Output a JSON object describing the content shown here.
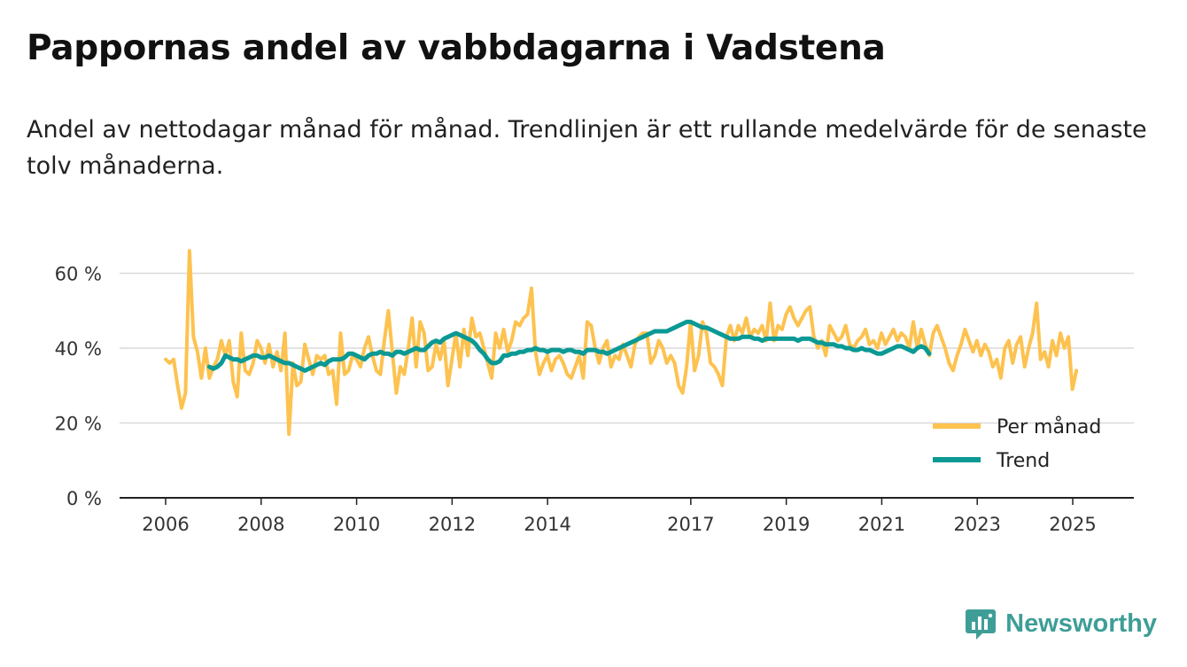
{
  "title": "Pappornas andel av vabbdagarna i Vadstena",
  "subtitle": "Andel av nettodagar månad för månad. Trendlinjen är ett rullande medelvärde för de senaste tolv månaderna.",
  "brand": {
    "name": "Newsworthy",
    "icon": "newsworthy-logo-icon",
    "color": "#3e9e97"
  },
  "colors": {
    "monthly": "#fdc24f",
    "trend": "#0b9994",
    "grid": "#d9d9d9",
    "axis": "#222222"
  },
  "chart_data": {
    "type": "line",
    "title": "Pappornas andel av vabbdagarna i Vadstena",
    "xlabel": "",
    "ylabel": "",
    "ylim": [
      0,
      65
    ],
    "y_ticks": [
      0,
      20,
      40,
      60
    ],
    "y_tick_labels": [
      "0 %",
      "20 %",
      "40 %",
      "60 %"
    ],
    "x_ticks": [
      2006,
      2008,
      2010,
      2012,
      2014,
      2017,
      2019,
      2021,
      2023,
      2025
    ],
    "x_tick_labels": [
      "2006",
      "2008",
      "2010",
      "2012",
      "2014",
      "2017",
      "2019",
      "2021",
      "2023",
      "2025"
    ],
    "grid": true,
    "legend": {
      "placement": "bottom-right",
      "entries": [
        "Per månad",
        "Trend"
      ]
    },
    "series": [
      {
        "name": "Per månad",
        "color": "#fdc24f",
        "x_start": 2006.0,
        "step": 0.0833,
        "values": [
          37,
          36,
          37,
          30,
          24,
          28,
          66,
          43,
          39,
          32,
          40,
          32,
          35,
          37,
          42,
          38,
          42,
          31,
          27,
          44,
          34,
          33,
          36,
          42,
          40,
          36,
          41,
          35,
          39,
          34,
          44,
          17,
          36,
          30,
          31,
          41,
          37,
          33,
          38,
          37,
          38,
          33,
          34,
          25,
          44,
          33,
          34,
          38,
          37,
          35,
          40,
          43,
          38,
          34,
          33,
          42,
          50,
          39,
          28,
          35,
          33,
          40,
          48,
          35,
          47,
          44,
          34,
          35,
          41,
          37,
          42,
          30,
          37,
          44,
          35,
          45,
          38,
          48,
          43,
          44,
          40,
          36,
          32,
          44,
          40,
          45,
          39,
          42,
          47,
          46,
          48,
          49,
          56,
          39,
          33,
          36,
          38,
          34,
          37,
          38,
          36,
          33,
          32,
          35,
          38,
          32,
          47,
          46,
          40,
          36,
          40,
          42,
          35,
          38,
          37,
          41,
          38,
          35,
          41,
          43,
          44,
          44,
          36,
          38,
          42,
          40,
          36,
          38,
          36,
          30,
          28,
          35,
          47,
          34,
          38,
          47,
          44,
          36,
          35,
          33,
          30,
          43,
          46,
          42,
          46,
          44,
          48,
          43,
          45,
          44,
          46,
          42,
          52,
          42,
          46,
          45,
          49,
          51,
          48,
          46,
          48,
          50,
          51,
          43,
          40,
          42,
          38,
          46,
          44,
          42,
          43,
          46,
          41,
          40,
          42,
          43,
          45,
          41,
          42,
          40,
          44,
          41,
          43,
          45,
          42,
          44,
          43,
          40,
          47,
          40,
          45,
          41,
          38,
          44,
          46,
          43,
          40,
          36,
          34,
          38,
          41,
          45,
          42,
          39,
          42,
          38,
          41,
          39,
          35,
          37,
          32,
          40,
          42,
          36,
          41,
          43,
          35,
          40,
          44,
          52,
          37,
          39,
          35,
          42,
          38,
          44,
          40,
          43,
          29,
          34
        ]
      },
      {
        "name": "Trend",
        "color": "#0b9994",
        "x_start": 2006.917,
        "step": 0.0833,
        "values": [
          35,
          34.5,
          35,
          36,
          38,
          37.5,
          37,
          37,
          36.5,
          37,
          37.5,
          38,
          38,
          37.5,
          37.5,
          38,
          37.5,
          37,
          36.5,
          36,
          36,
          35.5,
          35,
          34.5,
          34,
          34.5,
          35,
          35.5,
          36,
          35.5,
          36.5,
          37,
          37,
          37,
          37.5,
          38.5,
          38.5,
          38,
          37.5,
          37,
          38,
          38.5,
          38.5,
          39,
          38.5,
          38.5,
          38,
          39,
          39,
          38.5,
          39,
          39.5,
          40,
          39.5,
          39.5,
          40.5,
          41.5,
          42,
          41.5,
          42.5,
          43,
          43.5,
          44,
          43.5,
          43,
          42.5,
          42,
          41,
          39.5,
          38.5,
          37,
          36,
          36,
          36.5,
          38,
          38,
          38.5,
          38.5,
          39,
          39,
          39.5,
          39.5,
          40,
          39.5,
          39.5,
          39,
          39.5,
          39.5,
          39.5,
          39,
          39.5,
          39.5,
          39,
          39,
          38.5,
          39.5,
          39.5,
          39.5,
          39,
          39,
          38.5,
          39,
          39.5,
          40,
          40.5,
          41,
          41.5,
          42,
          42.5,
          43,
          43.5,
          44,
          44.5,
          44.5,
          44.5,
          44.5,
          45,
          45.5,
          46,
          46.5,
          47,
          47,
          46.5,
          46,
          45.5,
          45.5,
          45,
          44.5,
          44,
          43.5,
          43,
          42.5,
          42.5,
          42.5,
          43,
          43,
          43,
          42.5,
          42.5,
          42,
          42.5,
          42.5,
          42.5,
          42.5,
          42.5,
          42.5,
          42.5,
          42.5,
          42,
          42.5,
          42.5,
          42.5,
          42,
          41.5,
          41.5,
          41,
          41,
          41,
          40.5,
          40.5,
          40,
          40,
          39.5,
          39.5,
          40,
          39.5,
          39.5,
          39,
          38.5,
          38.5,
          39,
          39.5,
          40,
          40.5,
          40.5,
          40,
          39.5,
          39,
          40,
          40.5,
          40,
          38.5
        ]
      }
    ]
  }
}
